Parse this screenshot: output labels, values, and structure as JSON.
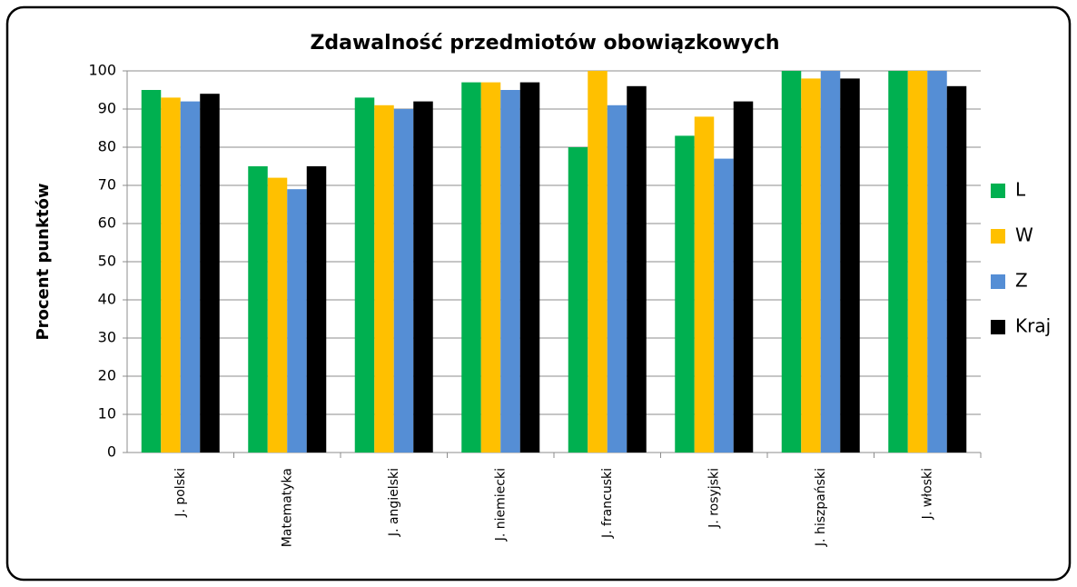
{
  "chart_data": {
    "type": "bar",
    "title": "Zdawalność przedmiotów obowiązkowych",
    "y_label": "Procent punktów",
    "categories": [
      "J. polski",
      "Matematyka",
      "J. angielski",
      "J. niemiecki",
      "J. francuski",
      "J. rosyjski",
      "J. hiszpański",
      "J. włoski"
    ],
    "series": [
      {
        "name": "L",
        "color": "#00b050",
        "values": [
          95,
          75,
          93,
          97,
          80,
          83,
          100,
          100
        ]
      },
      {
        "name": "W",
        "color": "#ffc000",
        "values": [
          93,
          72,
          91,
          97,
          100,
          88,
          98,
          100
        ]
      },
      {
        "name": "Z",
        "color": "#558ed5",
        "values": [
          92,
          69,
          90,
          95,
          91,
          77,
          100,
          100
        ]
      },
      {
        "name": "Kraj",
        "color": "#000000",
        "values": [
          94,
          75,
          92,
          97,
          96,
          92,
          98,
          96
        ]
      }
    ],
    "ylim": [
      0,
      100
    ],
    "yticks": [
      0,
      10,
      20,
      30,
      40,
      50,
      60,
      70,
      80,
      90,
      100
    ],
    "grid": true,
    "legend": "right"
  }
}
